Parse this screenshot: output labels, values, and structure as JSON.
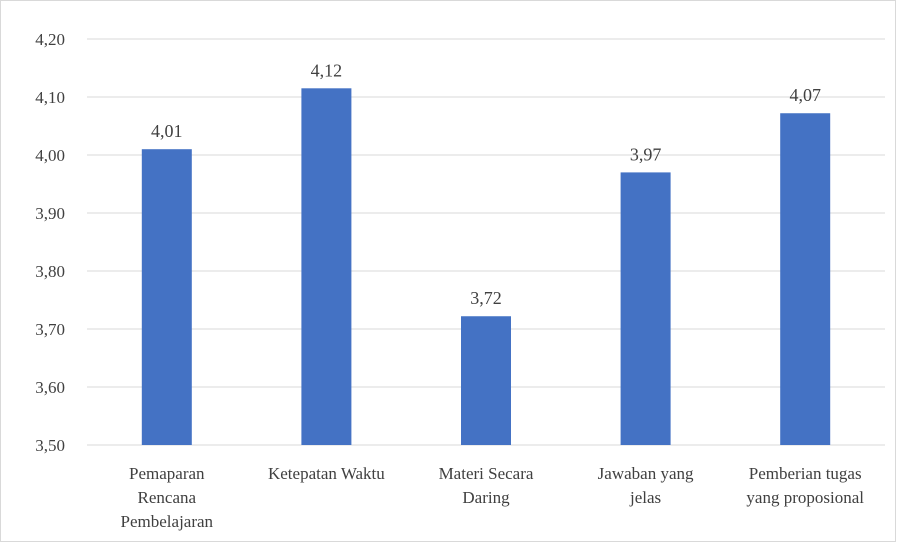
{
  "chart_data": {
    "type": "bar",
    "title": "",
    "xlabel": "",
    "ylabel": "",
    "ylim": [
      3.5,
      4.2
    ],
    "yticks": [
      "3,50",
      "3,60",
      "3,70",
      "3,80",
      "3,90",
      "4,00",
      "4,10",
      "4,20"
    ],
    "ytick_values": [
      3.5,
      3.6,
      3.7,
      3.8,
      3.9,
      4.0,
      4.1,
      4.2
    ],
    "grid": true,
    "legend": "none",
    "bar_color": "#4472c4",
    "categories": [
      [
        "Pemaparan",
        "Rencana",
        "Pembelajaran"
      ],
      [
        "Ketepatan Waktu"
      ],
      [
        "Materi Secara",
        "Daring"
      ],
      [
        "Jawaban yang",
        "jelas"
      ],
      [
        "Pemberian tugas",
        "yang proposional"
      ]
    ],
    "values": [
      4.01,
      4.115,
      3.722,
      3.97,
      4.072
    ],
    "data_labels": [
      "4,01",
      "4,12",
      "3,72",
      "3,97",
      "4,07"
    ]
  }
}
